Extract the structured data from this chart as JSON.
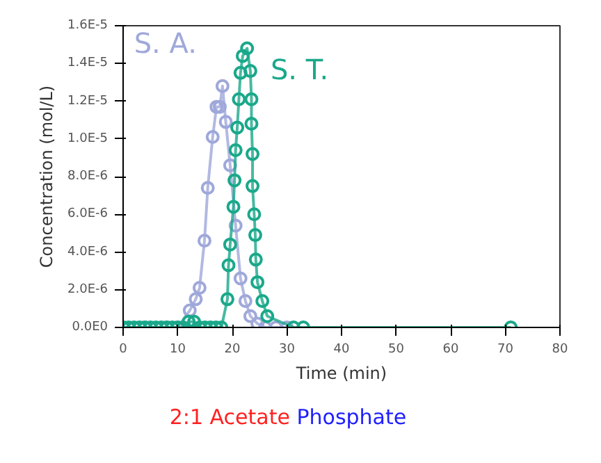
{
  "chart_data": {
    "type": "line",
    "xlabel": "Time (min)",
    "ylabel": "Concentration (mol/L)",
    "marker": "circle",
    "line_style": "solid",
    "grid": false,
    "annotations": [
      "2:1 Acetate",
      "Phosphate"
    ],
    "xlim": [
      0,
      80
    ],
    "xticks": [
      0,
      10,
      20,
      30,
      40,
      50,
      60,
      70,
      80
    ],
    "ylim": [
      0,
      1.6e-05
    ],
    "yticks": [
      {
        "value": 0,
        "label": "0.0E0"
      },
      {
        "value": 2e-06,
        "label": "2.0E-6"
      },
      {
        "value": 4e-06,
        "label": "4.0E-6"
      },
      {
        "value": 6e-06,
        "label": "6.0E-6"
      },
      {
        "value": 8e-06,
        "label": "8.0E-6"
      },
      {
        "value": 1e-05,
        "label": "1.0E-5"
      },
      {
        "value": 1.2e-05,
        "label": "1.2E-5"
      },
      {
        "value": 1.4e-05,
        "label": "1.4E-5"
      },
      {
        "value": 1.6e-05,
        "label": "1.6E-5"
      }
    ],
    "series": [
      {
        "name": "S. A.",
        "color": "#9fa8da",
        "x": [
          0,
          4,
          8,
          10,
          12.2,
          13.3,
          14,
          14.9,
          15.5,
          16.4,
          17.1,
          17.7,
          18.2,
          18.8,
          19.6,
          20.6,
          21.5,
          22.4,
          23.3,
          24.6,
          26,
          28,
          30
        ],
        "values": [
          0,
          0,
          0,
          0,
          9e-07,
          1.5e-06,
          2.1e-06,
          4.6e-06,
          7.4e-06,
          1.01e-05,
          1.17e-05,
          1.17e-05,
          1.28e-05,
          1.09e-05,
          8.6e-06,
          5.4e-06,
          2.6e-06,
          1.4e-06,
          6e-07,
          2e-07,
          0,
          0,
          0
        ]
      },
      {
        "name": "S. T.",
        "color": "#1aa88a",
        "x": [
          0,
          1,
          2,
          3,
          4,
          5,
          6,
          7,
          8,
          9,
          10,
          11,
          12,
          13,
          14,
          15,
          16,
          17,
          18,
          19.1,
          19.3,
          19.6,
          20.2,
          20.4,
          20.6,
          20.9,
          21.2,
          21.5,
          21.9,
          22.7,
          23.3,
          23.5,
          23.5,
          23.7,
          23.7,
          24,
          24.2,
          24.3,
          24.6,
          25.5,
          26.4,
          31.2,
          33,
          71
        ],
        "values": [
          0,
          0,
          0,
          0,
          0,
          0,
          0,
          0,
          0,
          0,
          0,
          0,
          3e-07,
          3e-07,
          0,
          0,
          0,
          0,
          0,
          1.5e-06,
          3.3e-06,
          4.4e-06,
          6.4e-06,
          7.8e-06,
          9.4e-06,
          1.06e-05,
          1.21e-05,
          1.35e-05,
          1.44e-05,
          1.48e-05,
          1.36e-05,
          1.21e-05,
          1.08e-05,
          9.2e-06,
          7.5e-06,
          6e-06,
          4.9e-06,
          3.6e-06,
          2.4e-06,
          1.4e-06,
          6e-07,
          0,
          0,
          0
        ]
      }
    ]
  }
}
